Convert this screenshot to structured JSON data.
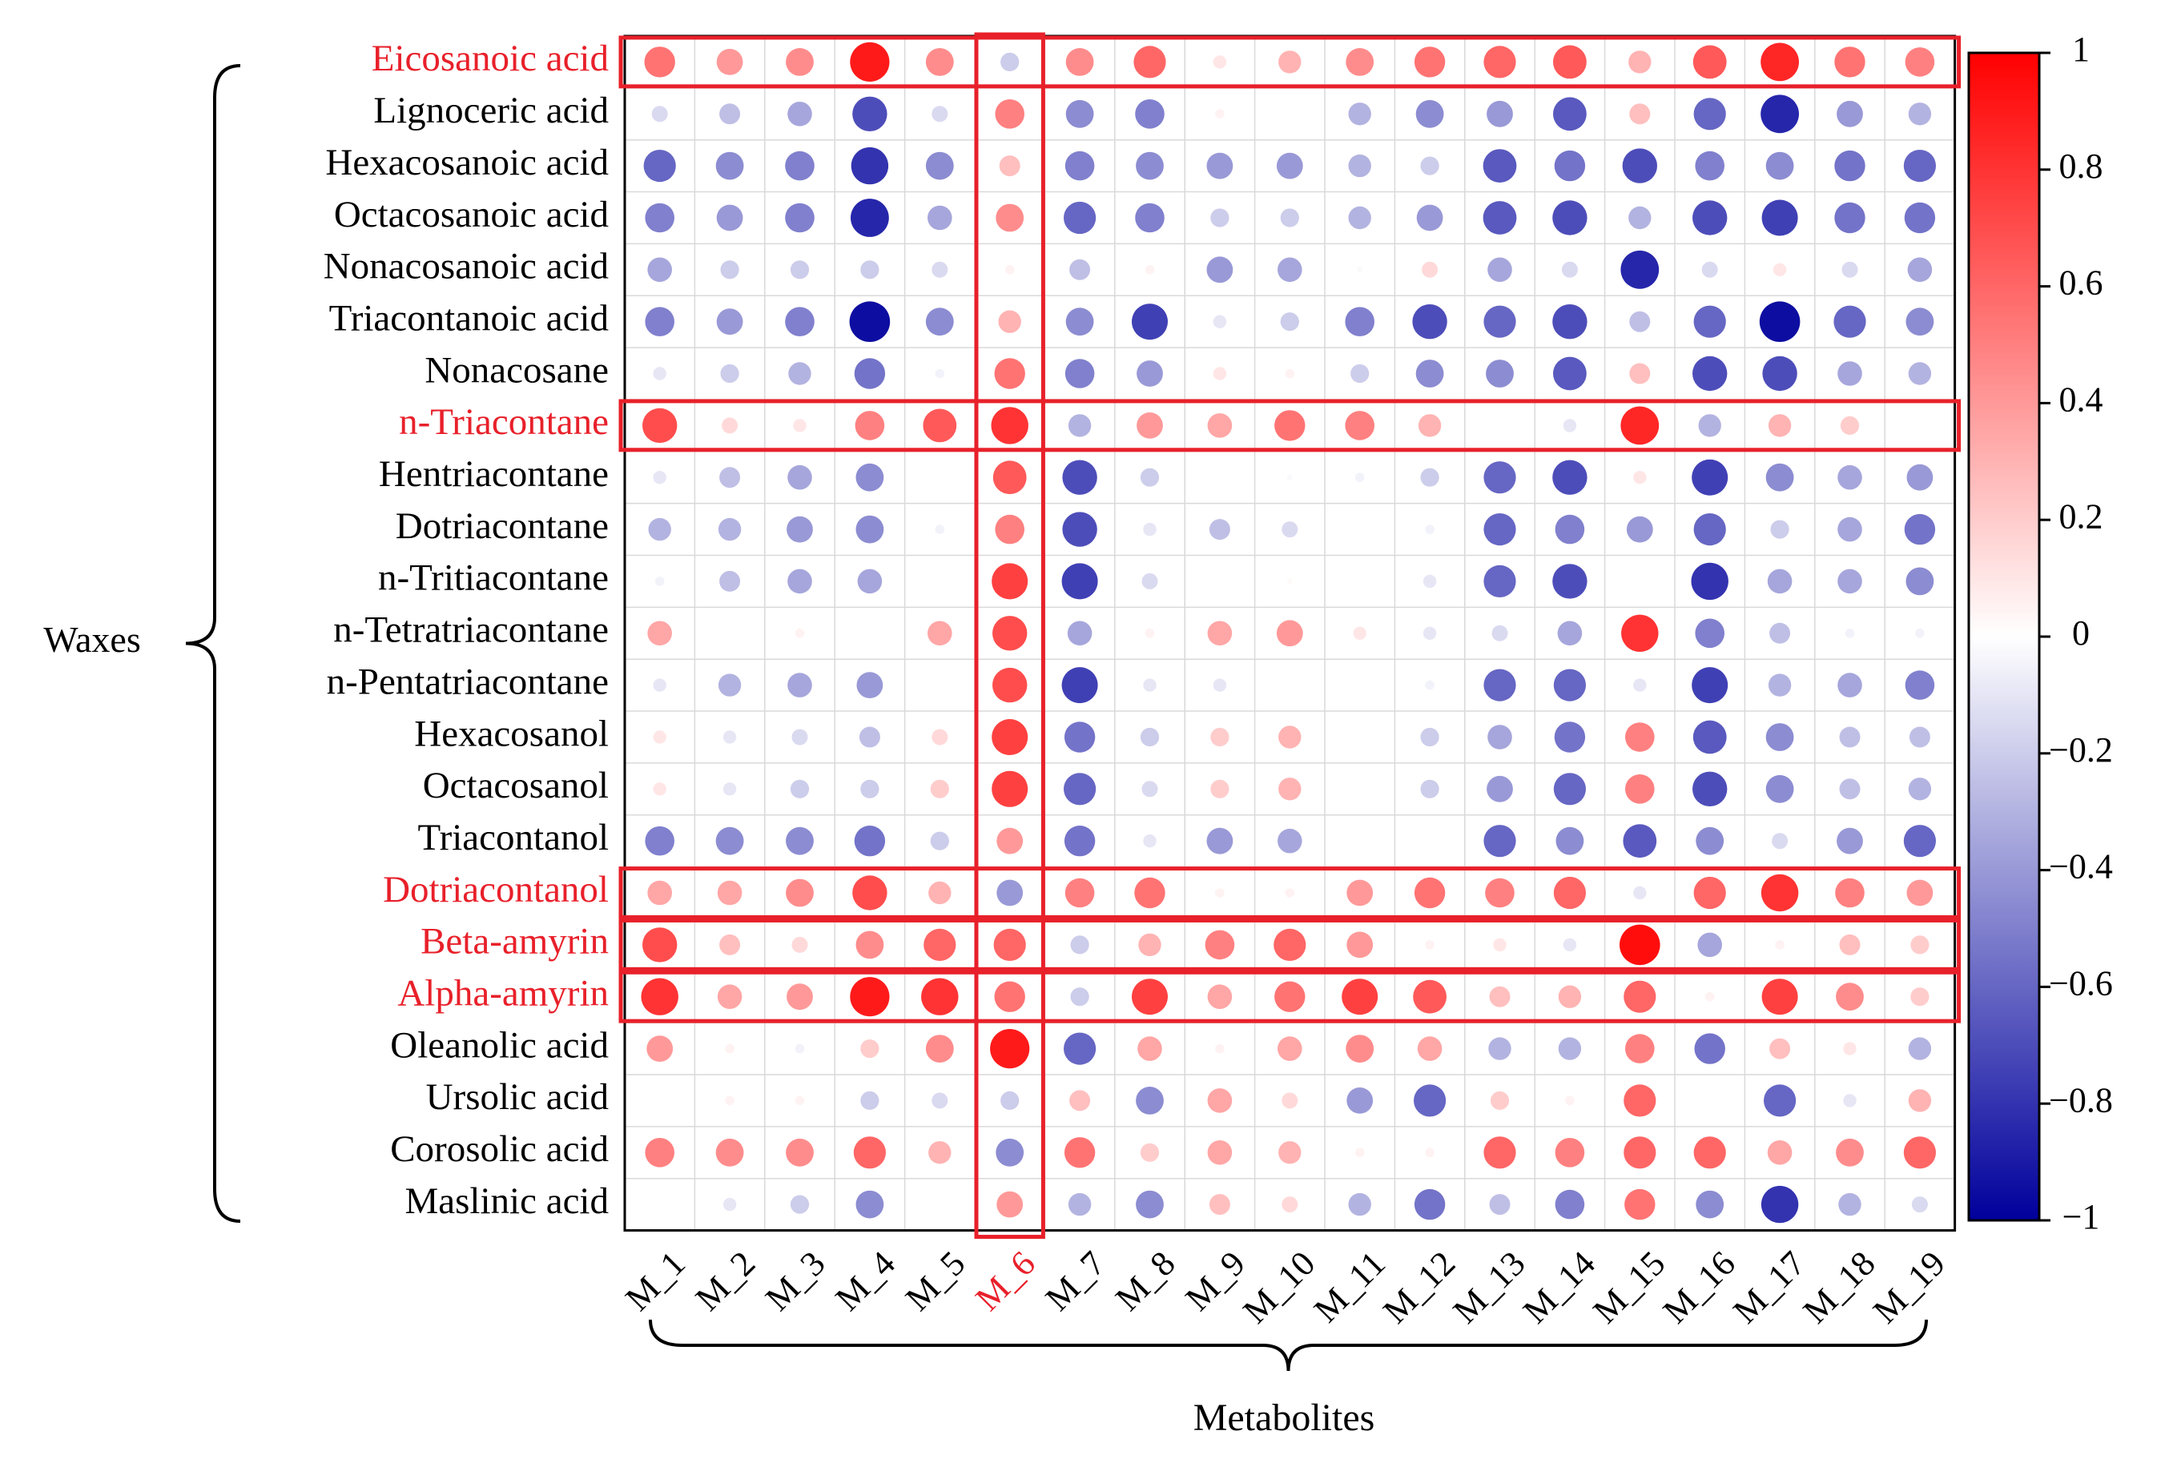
{
  "chart_data": {
    "type": "correlation-bubble-heatmap",
    "title": "",
    "group_label": "Waxes",
    "xlabel": "Metabolites",
    "rows": [
      "Eicosanoic acid",
      "Lignoceric acid",
      "Hexacosanoic acid",
      "Octacosanoic acid",
      "Nonacosanoic acid",
      "Triacontanoic acid",
      "Nonacosane",
      "n-Triacontane",
      "Hentriacontane",
      "Dotriacontane",
      "n-Tritiacontane",
      "n-Tetratriacontane",
      "n-Pentatriacontane",
      "Hexacosanol",
      "Octacosanol",
      "Triacontanol",
      "Dotriacontanol",
      "Beta-amyrin",
      "Alpha-amyrin",
      "Oleanolic acid",
      "Ursolic acid",
      "Corosolic acid",
      "Maslinic acid"
    ],
    "columns": [
      "M_1",
      "M_2",
      "M_3",
      "M_4",
      "M_5",
      "M_6",
      "M_7",
      "M_8",
      "M_9",
      "M_10",
      "M_11",
      "M_12",
      "M_13",
      "M_14",
      "M_15",
      "M_16",
      "M_17",
      "M_18",
      "M_19"
    ],
    "values": [
      [
        0.55,
        0.4,
        0.45,
        0.9,
        0.45,
        -0.2,
        0.45,
        0.6,
        0.1,
        0.3,
        0.45,
        0.55,
        0.6,
        0.65,
        0.3,
        0.65,
        0.85,
        0.55,
        0.5
      ],
      [
        -0.15,
        -0.25,
        -0.35,
        -0.7,
        -0.15,
        0.5,
        -0.45,
        -0.5,
        0.05,
        0.0,
        -0.3,
        -0.45,
        -0.4,
        -0.65,
        0.25,
        -0.6,
        -0.85,
        -0.4,
        -0.3
      ],
      [
        -0.6,
        -0.45,
        -0.5,
        -0.8,
        -0.45,
        0.25,
        -0.5,
        -0.45,
        -0.4,
        -0.4,
        -0.3,
        -0.2,
        -0.65,
        -0.55,
        -0.7,
        -0.5,
        -0.45,
        -0.55,
        -0.6
      ],
      [
        -0.5,
        -0.4,
        -0.5,
        -0.85,
        -0.35,
        0.45,
        -0.6,
        -0.5,
        -0.2,
        -0.2,
        -0.3,
        -0.4,
        -0.65,
        -0.7,
        -0.3,
        -0.7,
        -0.75,
        -0.55,
        -0.55
      ],
      [
        -0.35,
        -0.2,
        -0.2,
        -0.2,
        -0.15,
        0.05,
        -0.25,
        0.05,
        -0.4,
        -0.35,
        -0.02,
        0.15,
        -0.35,
        -0.15,
        -0.85,
        -0.15,
        0.1,
        -0.15,
        -0.35
      ],
      [
        -0.5,
        -0.4,
        -0.5,
        -0.95,
        -0.45,
        0.3,
        -0.45,
        -0.75,
        -0.1,
        -0.2,
        -0.5,
        -0.7,
        -0.6,
        -0.7,
        -0.25,
        -0.6,
        -0.95,
        -0.6,
        -0.45
      ],
      [
        -0.1,
        -0.2,
        -0.3,
        -0.55,
        -0.05,
        0.55,
        -0.5,
        -0.4,
        0.1,
        0.05,
        -0.2,
        -0.45,
        -0.45,
        -0.65,
        0.25,
        -0.7,
        -0.7,
        -0.35,
        -0.3
      ],
      [
        0.7,
        0.15,
        0.1,
        0.5,
        0.65,
        0.8,
        -0.3,
        0.4,
        0.35,
        0.55,
        0.5,
        0.3,
        0.0,
        -0.1,
        0.85,
        -0.3,
        0.3,
        0.2,
        0.0
      ],
      [
        -0.1,
        -0.25,
        -0.35,
        -0.45,
        0.0,
        0.65,
        -0.7,
        -0.2,
        0.0,
        -0.02,
        -0.05,
        -0.2,
        -0.6,
        -0.7,
        0.1,
        -0.75,
        -0.45,
        -0.35,
        -0.4
      ],
      [
        -0.3,
        -0.3,
        -0.4,
        -0.45,
        -0.05,
        0.5,
        -0.7,
        -0.1,
        -0.25,
        -0.15,
        0.0,
        -0.05,
        -0.6,
        -0.5,
        -0.4,
        -0.6,
        -0.2,
        -0.35,
        -0.55
      ],
      [
        -0.05,
        -0.25,
        -0.35,
        -0.35,
        0.0,
        0.75,
        -0.75,
        -0.15,
        0.0,
        0.02,
        0.0,
        -0.1,
        -0.6,
        -0.7,
        0.0,
        -0.8,
        -0.35,
        -0.35,
        -0.45
      ],
      [
        0.35,
        0.0,
        0.05,
        0.0,
        0.35,
        0.7,
        -0.35,
        0.05,
        0.35,
        0.4,
        0.1,
        -0.1,
        -0.15,
        -0.35,
        0.8,
        -0.5,
        -0.25,
        -0.05,
        -0.05
      ],
      [
        -0.1,
        -0.3,
        -0.35,
        -0.4,
        0.0,
        0.7,
        -0.75,
        -0.1,
        -0.1,
        0.0,
        0.0,
        -0.05,
        -0.6,
        -0.6,
        -0.1,
        -0.75,
        -0.3,
        -0.35,
        -0.5
      ],
      [
        0.1,
        -0.1,
        -0.15,
        -0.25,
        0.15,
        0.75,
        -0.55,
        -0.2,
        0.2,
        0.3,
        0.0,
        -0.2,
        -0.35,
        -0.55,
        0.5,
        -0.65,
        -0.45,
        -0.25,
        -0.25
      ],
      [
        0.1,
        -0.1,
        -0.2,
        -0.2,
        0.2,
        0.75,
        -0.6,
        -0.15,
        0.2,
        0.3,
        0.0,
        -0.2,
        -0.4,
        -0.6,
        0.5,
        -0.7,
        -0.45,
        -0.25,
        -0.3
      ],
      [
        -0.5,
        -0.45,
        -0.45,
        -0.55,
        -0.2,
        0.4,
        -0.55,
        -0.1,
        -0.4,
        -0.35,
        0.0,
        0.0,
        -0.6,
        -0.45,
        -0.65,
        -0.45,
        -0.15,
        -0.4,
        -0.6
      ],
      [
        0.35,
        0.35,
        0.45,
        0.7,
        0.3,
        -0.4,
        0.5,
        0.55,
        0.05,
        0.05,
        0.4,
        0.55,
        0.5,
        0.6,
        -0.1,
        0.6,
        0.8,
        0.5,
        0.4
      ],
      [
        0.7,
        0.25,
        0.15,
        0.45,
        0.6,
        0.6,
        -0.2,
        0.3,
        0.5,
        0.6,
        0.4,
        0.05,
        0.1,
        -0.1,
        0.95,
        -0.35,
        0.05,
        0.25,
        0.2
      ],
      [
        0.8,
        0.35,
        0.4,
        0.9,
        0.8,
        0.55,
        -0.2,
        0.75,
        0.35,
        0.55,
        0.75,
        0.65,
        0.25,
        0.3,
        0.6,
        0.05,
        0.75,
        0.45,
        0.2
      ],
      [
        0.4,
        0.05,
        -0.05,
        0.2,
        0.45,
        0.9,
        -0.6,
        0.35,
        0.05,
        0.35,
        0.45,
        0.35,
        -0.3,
        -0.3,
        0.5,
        -0.55,
        0.25,
        0.1,
        -0.3
      ],
      [
        0.0,
        0.05,
        0.05,
        -0.2,
        -0.15,
        -0.2,
        0.25,
        -0.45,
        0.35,
        0.15,
        -0.4,
        -0.6,
        0.2,
        0.05,
        0.6,
        0.0,
        -0.6,
        -0.1,
        0.3
      ],
      [
        0.5,
        0.45,
        0.45,
        0.6,
        0.3,
        -0.45,
        0.55,
        0.2,
        0.35,
        0.3,
        0.05,
        0.05,
        0.6,
        0.5,
        0.6,
        0.6,
        0.35,
        0.45,
        0.6
      ],
      [
        0.0,
        -0.1,
        -0.2,
        -0.45,
        0.0,
        0.4,
        -0.3,
        -0.45,
        0.25,
        0.15,
        -0.3,
        -0.55,
        -0.25,
        -0.5,
        0.55,
        -0.45,
        -0.8,
        -0.3,
        -0.15
      ]
    ],
    "zlim": [
      -1,
      1
    ],
    "colorbar_ticks": [
      1,
      0.8,
      0.6,
      0.4,
      0.2,
      0,
      -0.2,
      -0.4,
      -0.6,
      -0.8,
      -1
    ],
    "colorbar_tick_labels": [
      "1",
      "0.8",
      "0.6",
      "0.4",
      "0.2",
      "0",
      "−0.2",
      "−0.4",
      "−0.6",
      "−0.8",
      "−1"
    ],
    "colormap": {
      "negative_end": "#00009c",
      "mid": "#ffffff",
      "positive_end": "#ff0000"
    },
    "highlighted_rows": [
      "Eicosanoic acid",
      "n-Triacontane",
      "Dotriacontanol",
      "Beta-amyrin",
      "Alpha-amyrin"
    ],
    "highlighted_columns": [
      "M_6"
    ],
    "highlight_color": "#e8202a",
    "grid_color": "#d9d9d9",
    "frame_color": "#000000"
  }
}
